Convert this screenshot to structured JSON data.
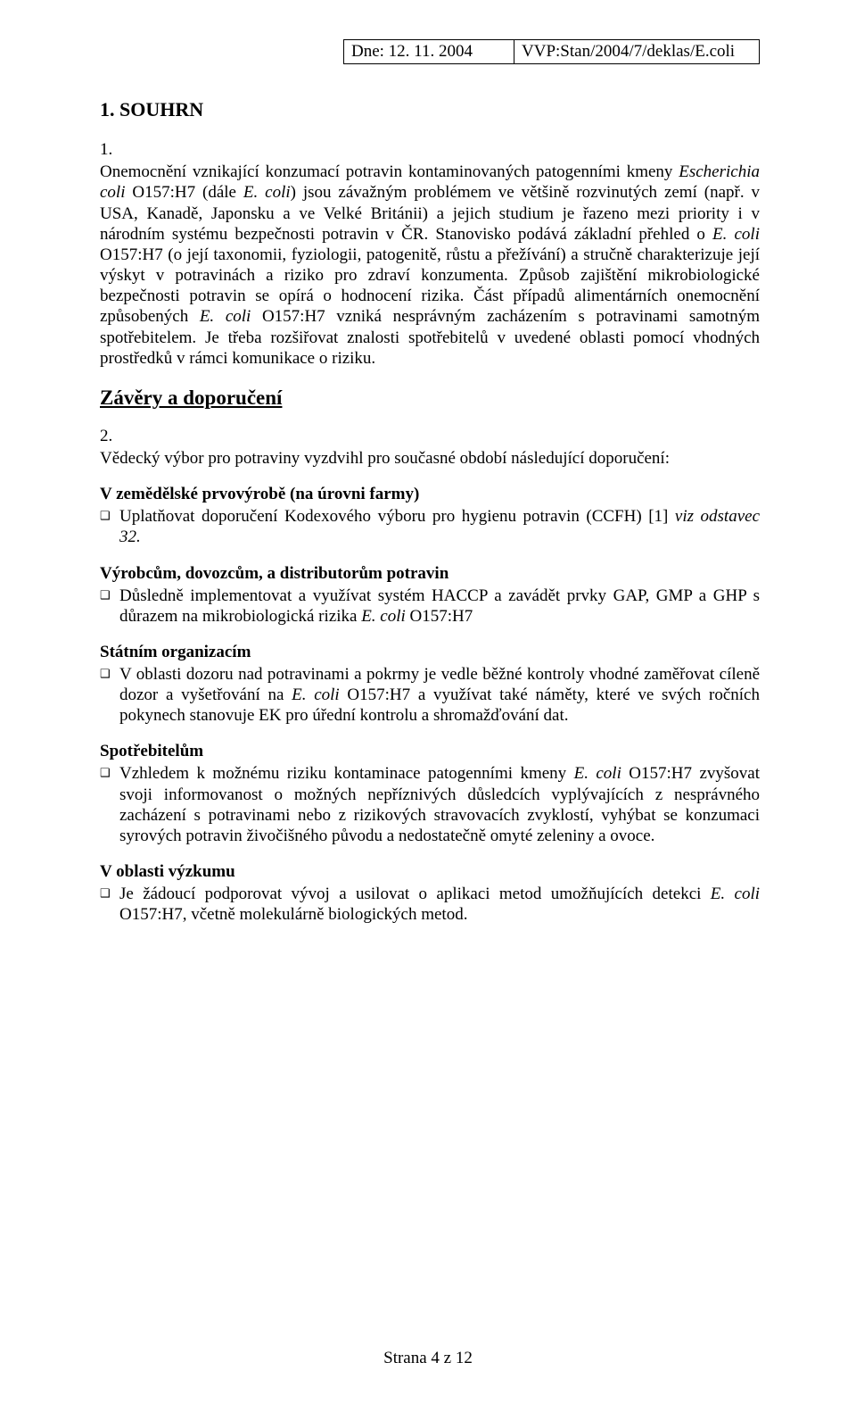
{
  "header": {
    "date_label": "Dne: 12. 11. 2004",
    "doc_code": "VVP:Stan/2004/7/deklas/E.coli"
  },
  "title": "1. SOUHRN",
  "summary_num": "1.",
  "summary_html": "Onemocnění vznikající konzumací potravin kontaminovaných patogenními kmeny <span class=\"italic\">Escherichia coli</span> O157:H7 (dále <span class=\"italic\">E. coli</span>) jsou závažným problémem ve většině rozvinutých zemí (např. v USA, Kanadě, Japonsku a ve Velké Británii) a jejich studium je řazeno mezi priority i v národním systému bezpečnosti potravin v ČR. Stanovisko podává základní přehled o <span class=\"italic\">E. coli</span> O157:H7 (o její taxonomii, fyziologii, patogenitě, růstu a přežívání) a stručně charakterizuje její výskyt v potravinách a riziko pro zdraví konzumenta. Způsob zajištění mikrobiologické bezpečnosti potravin se opírá o hodnocení rizika. Část případů alimentárních onemocnění způsobených <span class=\"italic\">E. coli</span> O157:H7 vzniká nesprávným zacházením s potravinami samotným spotřebitelem. Je třeba rozšiřovat znalosti spotřebitelů v uvedené oblasti pomocí vhodných prostředků v rámci komunikace o riziku.",
  "conclusions_title": "Závěry a doporučení",
  "conclusions_num": "2.",
  "conclusions_lead": "Vědecký výbor pro potraviny vyzdvihl pro současné období následující doporučení:",
  "sections": [
    {
      "title": "V zemědělské prvovýrobě (na úrovni farmy)",
      "items": [
        "Uplatňovat doporučení Kodexového výboru pro hygienu potravin (CCFH) [1] <span class=\"italic\">viz odstavec 32.</span>"
      ]
    },
    {
      "title": "Výrobcům, dovozcům, a distributorům potravin",
      "items": [
        "Důsledně implementovat a využívat systém HACCP a zavádět prvky GAP, GMP a GHP s důrazem na mikrobiologická rizika <span class=\"italic\">E. coli</span> O157:H7"
      ]
    },
    {
      "title": "Státním organizacím",
      "items": [
        "V oblasti dozoru nad potravinami a pokrmy je vedle běžné kontroly vhodné zaměřovat cíleně dozor a vyšetřování na <span class=\"italic\">E. coli</span> O157:H7 a využívat také náměty, které ve svých ročních pokynech stanovuje EK pro úřední kontrolu a shromažďování dat."
      ]
    },
    {
      "title": "Spotřebitelům",
      "items": [
        "Vzhledem k možnému riziku kontaminace patogenními kmeny <span class=\"italic\">E. coli</span> O157:H7 zvyšovat svoji informovanost o možných nepříznivých důsledcích vyplývajících z nesprávného zacházení s potravinami nebo z rizikových stravovacích zvyklostí, vyhýbat se konzumaci syrových potravin živočišného původu a nedostatečně omyté zeleniny a ovoce."
      ]
    },
    {
      "title": "V oblasti výzkumu",
      "items": [
        "Je žádoucí podporovat vývoj a usilovat o aplikaci metod umožňujících detekci <span class=\"italic\">E. coli</span> O157:H7, včetně molekulárně biologických metod."
      ]
    }
  ],
  "footer": "Strana  4 z  12",
  "bullet_glyph": "❑",
  "colors": {
    "text": "#000000",
    "background": "#ffffff",
    "border": "#000000"
  },
  "fonts": {
    "body_family": "Times New Roman",
    "body_size_pt": 14,
    "h2_size_pt": 17
  }
}
